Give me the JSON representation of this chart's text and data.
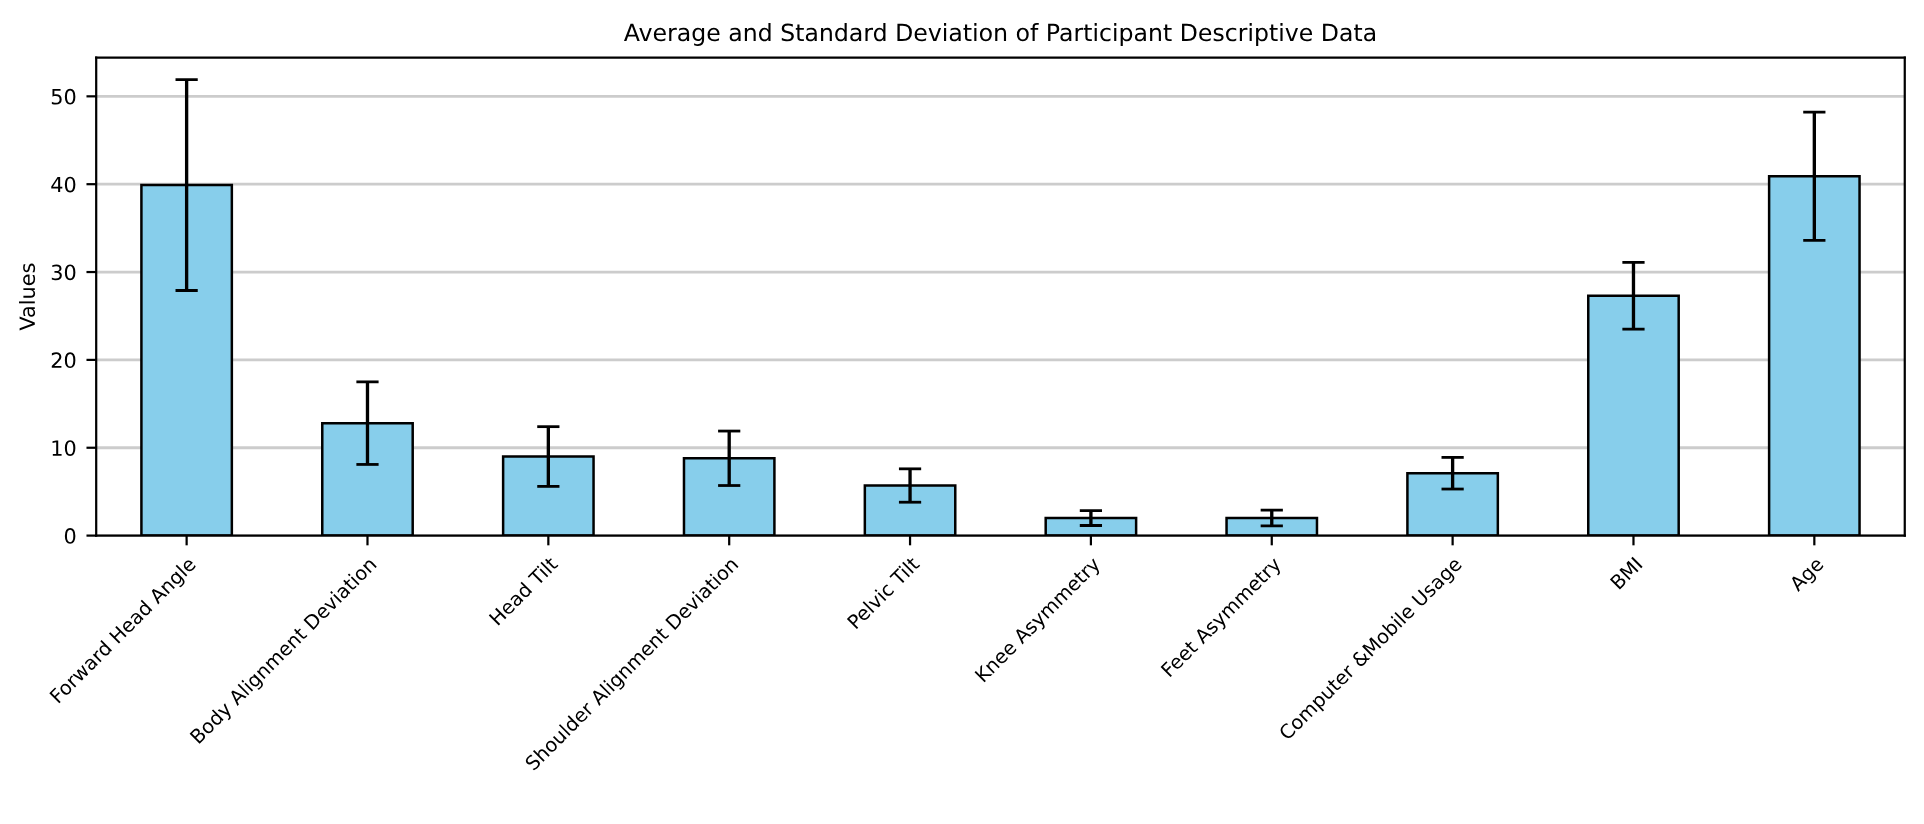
{
  "chart_data": {
    "type": "bar",
    "title": "Average and Standard Deviation of Participant Descriptive Data",
    "ylabel": "Values",
    "categories": [
      "Forward Head Angle",
      "Body Alignment Deviation",
      "Head Tilt",
      "Shoulder Alignment Deviation",
      "Pelvic Tilt",
      "Knee Asymmetry",
      "Feet Asymmetry",
      "Computer &Mobile Usage",
      "BMI",
      "Age"
    ],
    "values": [
      39.9,
      12.8,
      9.0,
      8.8,
      5.7,
      2.0,
      2.0,
      7.1,
      27.3,
      40.9
    ],
    "errors": [
      12.0,
      4.7,
      3.4,
      3.1,
      1.9,
      0.85,
      0.9,
      1.8,
      3.8,
      7.3
    ],
    "color": "#87ceeb",
    "ylim": [
      0,
      54.4
    ],
    "yticks": [
      0,
      10,
      20,
      30,
      40,
      50
    ],
    "grid": "y"
  }
}
